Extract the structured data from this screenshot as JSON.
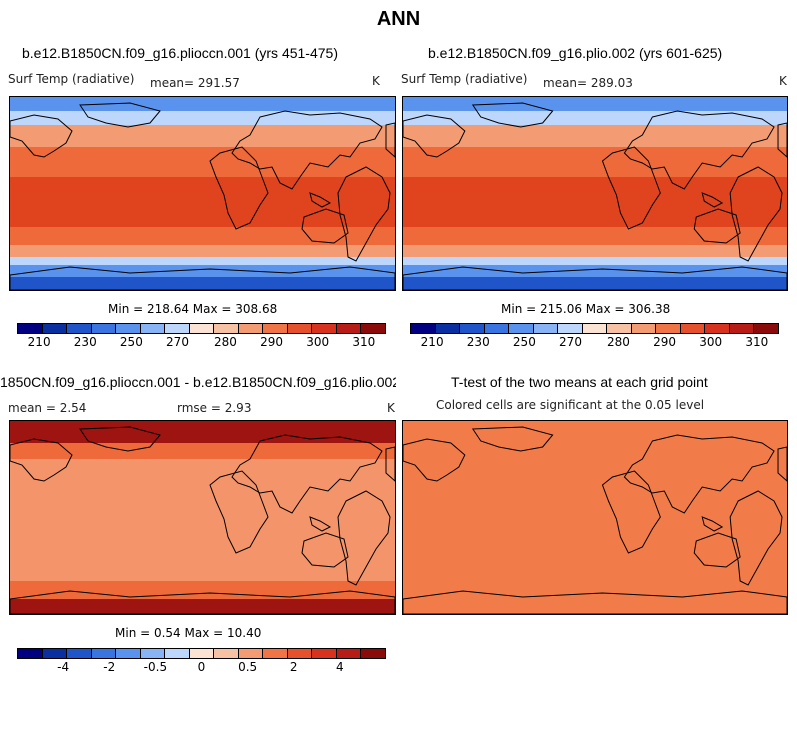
{
  "figure": {
    "title": "ANN"
  },
  "panels": [
    {
      "title": "b.e12.B1850CN.f09_g16.plioccn.001 (yrs 451-475)",
      "left_label": "Surf Temp (radiative)",
      "center_label": "mean= 291.57",
      "right_label": "K",
      "minmax": "Min = 218.64 Max = 308.68"
    },
    {
      "title": "b.e12.B1850CN.f09_g16.plio.002 (yrs 601-625)",
      "left_label": "Surf Temp (radiative)",
      "center_label": "mean= 289.03",
      "right_label": "K",
      "minmax": "Min = 215.06 Max = 306.38"
    },
    {
      "title": "1850CN.f09_g16.plioccn.001 - b.e12.B1850CN.f09_g16.plio.002",
      "left_label": "mean =   2.54",
      "center_label": "rmse =   2.93",
      "right_label": "K",
      "minmax": "Min =   0.54 Max =  10.40"
    },
    {
      "title": "T-test of the two means at each grid point",
      "subtitle": "Colored cells are significant at the 0.05 level"
    }
  ],
  "colorbars": {
    "temp": {
      "colors": [
        "#000080",
        "#0a2fa0",
        "#1f55c8",
        "#3a74e0",
        "#5a93ee",
        "#88b4f5",
        "#bcd7fb",
        "#fbe3d3",
        "#f7c1a3",
        "#f39b72",
        "#ef7446",
        "#e5512c",
        "#d6321e",
        "#b71d16",
        "#8b0a0a"
      ],
      "ticks": [
        "210",
        "230",
        "250",
        "270",
        "280",
        "290",
        "300",
        "310"
      ]
    },
    "diff": {
      "colors": [
        "#000080",
        "#0a2fa0",
        "#1f55c8",
        "#3a74e0",
        "#5a93ee",
        "#88b4f5",
        "#bcd7fb",
        "#fbe3d3",
        "#f7c1a3",
        "#f39b72",
        "#ef7446",
        "#e5512c",
        "#d6321e",
        "#b71d16",
        "#8b0a0a"
      ],
      "ticks": [
        "-4",
        "-2",
        "-0.5",
        "0",
        "0.5",
        "2",
        "4"
      ]
    }
  },
  "colors": {
    "tropics": "#e0441e",
    "warm": "#ef6a3a",
    "mild": "#f39b72",
    "cool": "#bcd7fb",
    "cold": "#5a93ee",
    "polar": "#1f55c8",
    "diff_base": "#f4946a",
    "diff_high": "#ef6a3a",
    "diff_arctic": "#9e1410",
    "ttest": "#f27b4a"
  }
}
